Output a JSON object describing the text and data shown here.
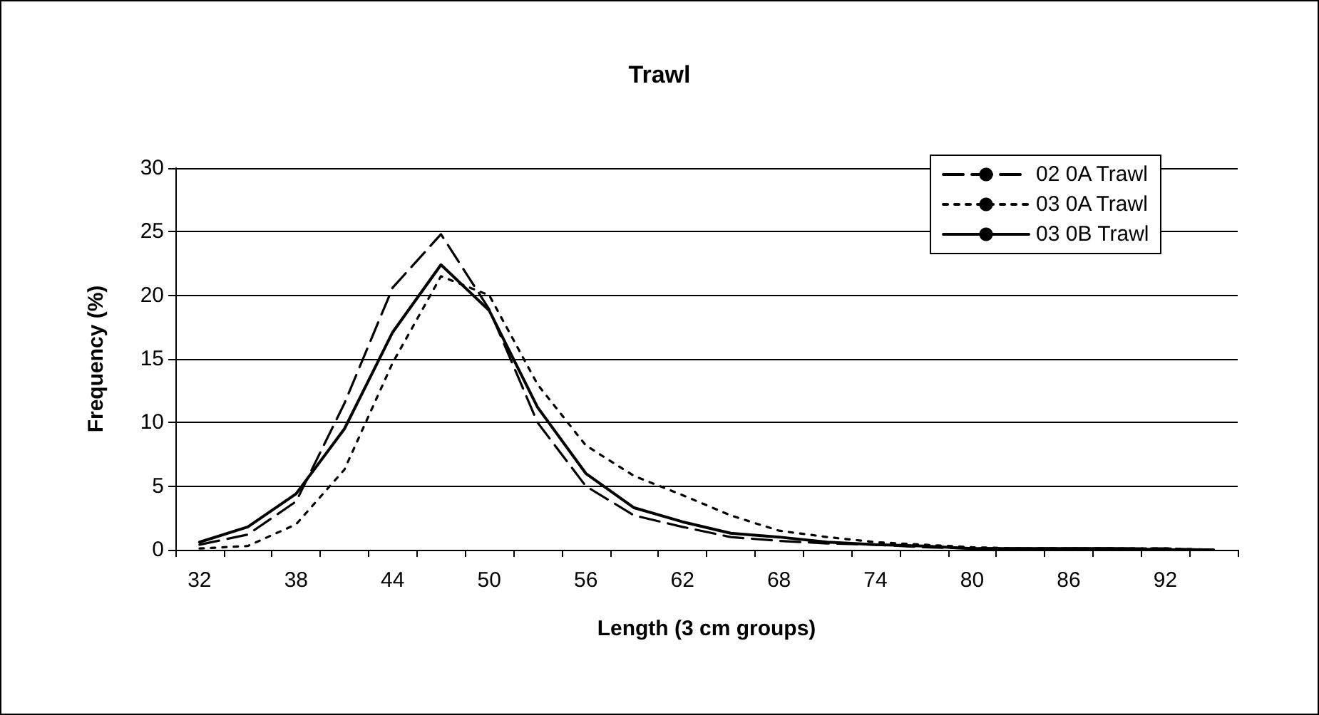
{
  "chart_data": {
    "type": "line",
    "title": "Trawl",
    "xlabel": "Length (3 cm groups)",
    "ylabel": "Frequency (%)",
    "categories": [
      "32",
      null,
      "38",
      null,
      "44",
      null,
      "50",
      null,
      "56",
      null,
      "62",
      null,
      "68",
      null,
      "74",
      null,
      "80",
      null,
      "86",
      null,
      "92",
      null
    ],
    "series": [
      {
        "name": "02 0A Trawl",
        "color": "#000000",
        "line_style": "dashed",
        "values": [
          0.4,
          1.2,
          3.8,
          11.5,
          20.6,
          24.8,
          18.9,
          10.0,
          5.0,
          2.7,
          1.8,
          1.0,
          0.7,
          0.5,
          0.4,
          0.2,
          0.1,
          0.1,
          0.1,
          0.1,
          0.1,
          0.0
        ]
      },
      {
        "name": "03 0A Trawl",
        "color": "#000000",
        "line_style": "dotted",
        "values": [
          0.1,
          0.3,
          2.0,
          6.3,
          14.7,
          21.5,
          20.0,
          13.0,
          8.2,
          5.8,
          4.3,
          2.7,
          1.5,
          1.0,
          0.6,
          0.4,
          0.2,
          0.1,
          0.1,
          0.1,
          0.1,
          0.0
        ]
      },
      {
        "name": "03 0B Trawl",
        "color": "#000000",
        "line_style": "solid",
        "values": [
          0.6,
          1.8,
          4.4,
          9.5,
          17.1,
          22.4,
          18.8,
          11.2,
          6.0,
          3.3,
          2.2,
          1.3,
          1.0,
          0.6,
          0.4,
          0.3,
          0.1,
          0.1,
          0.1,
          0.1,
          0.0,
          0.0
        ]
      }
    ],
    "ylim": [
      0,
      30
    ],
    "yticks": [
      0,
      5,
      10,
      15,
      20,
      25,
      30
    ],
    "grid": "y",
    "legend": "top right",
    "marker": "none"
  }
}
